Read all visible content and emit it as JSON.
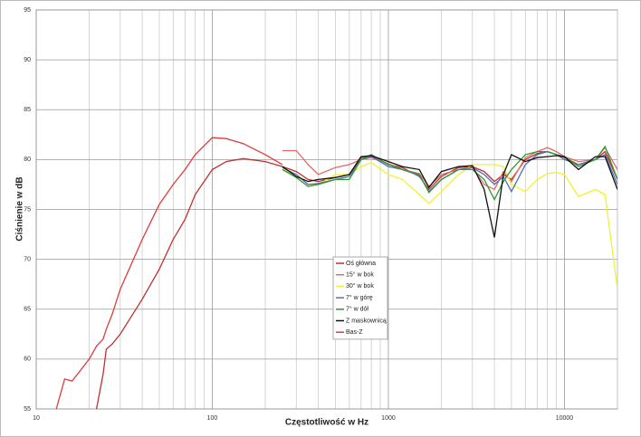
{
  "chart_data": {
    "type": "line",
    "x_label": "Częstotliwość w Hz",
    "y_label": "Ciśnienie w dB",
    "x": [
      13,
      14.5,
      16,
      20,
      22,
      24,
      25,
      27,
      30,
      40,
      50,
      60,
      70,
      80,
      100,
      120,
      150,
      200,
      250,
      300,
      350,
      400,
      500,
      600,
      700,
      800,
      1000,
      1200,
      1500,
      1700,
      2000,
      2500,
      3000,
      3500,
      4000,
      4500,
      5000,
      6000,
      7000,
      8000,
      9000,
      10000,
      12000,
      15000,
      17000,
      20000
    ],
    "xlim": [
      10,
      20000
    ],
    "xticks": [
      10,
      100,
      1000,
      10000
    ],
    "xminorticks": [
      20,
      30,
      40,
      50,
      60,
      70,
      80,
      90,
      200,
      300,
      400,
      500,
      600,
      700,
      800,
      900,
      2000,
      3000,
      4000,
      5000,
      6000,
      7000,
      8000,
      9000,
      20000
    ],
    "x_log": true,
    "ylim": [
      55,
      95
    ],
    "yticks": [
      55,
      60,
      65,
      70,
      75,
      80,
      85,
      90,
      95
    ],
    "grid": true,
    "legend": "center",
    "series": [
      {
        "name": "Oś główna",
        "color": "#c0302c",
        "values": [
          null,
          null,
          null,
          null,
          55,
          58.5,
          61,
          61.5,
          62.5,
          66,
          69,
          72,
          74,
          76.5,
          79,
          79.8,
          80.1,
          79.8,
          79.3,
          78.8,
          78,
          77.8,
          78.2,
          78.5,
          80.2,
          80.4,
          79.5,
          79.2,
          78.3,
          77,
          78.3,
          79.2,
          79.3,
          78.8,
          77.8,
          78.5,
          78,
          80,
          80.6,
          80.8,
          80.5,
          80.2,
          79.5,
          80,
          80.8,
          78
        ]
      },
      {
        "name": "15° w bok",
        "color": "#e06a6a",
        "values": [
          null,
          null,
          null,
          null,
          null,
          null,
          null,
          null,
          null,
          null,
          null,
          null,
          null,
          null,
          null,
          null,
          null,
          null,
          80.9,
          80.9,
          79.5,
          78.5,
          79.2,
          79.5,
          80,
          80.2,
          79.6,
          79,
          78.6,
          77.3,
          78.5,
          79,
          79.2,
          77.5,
          77,
          78.8,
          77.8,
          80.2,
          80.8,
          81.2,
          80.8,
          80.3,
          79.8,
          80,
          81.2,
          79
        ]
      },
      {
        "name": "30° w bok",
        "color": "#f2f230",
        "values": [
          null,
          null,
          null,
          null,
          null,
          null,
          null,
          null,
          null,
          null,
          null,
          null,
          null,
          null,
          null,
          null,
          null,
          null,
          79,
          78.5,
          77.5,
          77.5,
          78.5,
          78.5,
          79.3,
          79.7,
          78.5,
          78,
          76.5,
          75.6,
          76.8,
          78.5,
          79.5,
          79.5,
          79.5,
          79.3,
          77.5,
          76.8,
          78,
          78.6,
          78.7,
          78.5,
          76.3,
          77,
          76.5,
          67
        ]
      },
      {
        "name": "7° w górę",
        "color": "#4f6fbd",
        "values": [
          null,
          null,
          null,
          null,
          null,
          null,
          null,
          null,
          null,
          null,
          null,
          null,
          null,
          null,
          null,
          null,
          null,
          null,
          79.2,
          78.5,
          77.5,
          77.6,
          78,
          78.3,
          80,
          80.3,
          79.3,
          79,
          78.4,
          76.8,
          78,
          79,
          79.2,
          78.5,
          77.5,
          78.3,
          76.8,
          79.5,
          80.5,
          80.8,
          80.5,
          80,
          79.5,
          80,
          80.5,
          77.5
        ]
      },
      {
        "name": "7° w dół",
        "color": "#2e9a2e",
        "values": [
          null,
          null,
          null,
          null,
          null,
          null,
          null,
          null,
          null,
          null,
          null,
          null,
          null,
          null,
          null,
          null,
          null,
          null,
          79,
          78.2,
          77.3,
          77.5,
          78,
          78,
          80,
          80.5,
          79.5,
          79,
          78.5,
          76.7,
          78,
          79,
          79,
          78,
          76,
          77.8,
          79,
          80.5,
          80.8,
          80.8,
          80.5,
          80.3,
          79.3,
          80,
          81.3,
          78
        ]
      },
      {
        "name": "Z maskownicą",
        "color": "#111111",
        "values": [
          null,
          null,
          null,
          null,
          null,
          null,
          null,
          null,
          null,
          null,
          null,
          null,
          null,
          null,
          null,
          null,
          null,
          null,
          79.3,
          78.3,
          77.8,
          78,
          78.2,
          78.5,
          80.3,
          80.4,
          79.8,
          79.3,
          79,
          77.2,
          78.8,
          79.3,
          79.4,
          77,
          72.2,
          78.5,
          80.5,
          79.8,
          80.2,
          80.3,
          80.4,
          80.3,
          79,
          80.3,
          80.3,
          77
        ]
      },
      {
        "name": "Bas-Z",
        "color": "#e03a3a",
        "values": [
          55,
          58,
          57.8,
          60,
          61.3,
          62,
          63,
          64.5,
          67,
          72,
          75.5,
          77.5,
          79,
          80.5,
          82.2,
          82.1,
          81.6,
          80.5,
          79.5,
          null,
          null,
          null,
          null,
          null,
          null,
          null,
          null,
          null,
          null,
          null,
          null,
          null,
          null,
          null,
          null,
          null,
          null,
          null,
          null,
          null,
          null,
          null,
          null,
          null,
          null,
          null
        ]
      }
    ]
  }
}
